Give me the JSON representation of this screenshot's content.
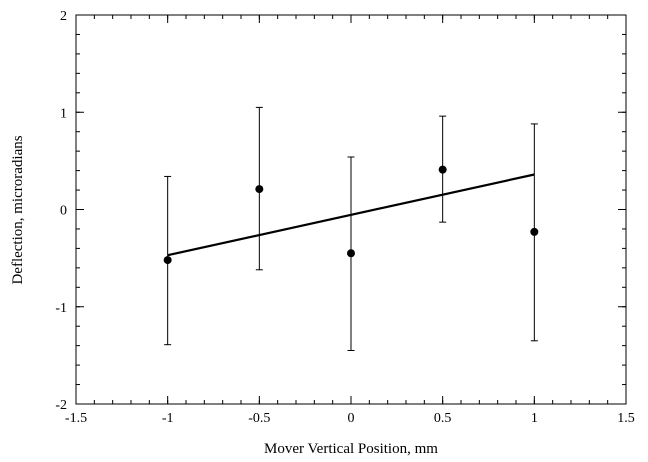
{
  "chart_data": {
    "type": "scatter",
    "xlabel": "Mover Vertical Position, mm",
    "ylabel": "Deflection, microradians",
    "xlim": [
      -1.5,
      1.5
    ],
    "ylim": [
      -2,
      2
    ],
    "x_ticks": [
      -1.5,
      -1,
      -0.5,
      0,
      0.5,
      1,
      1.5
    ],
    "x_tick_labels": [
      "-1.5",
      "-1",
      "-0.5",
      "0",
      "0.5",
      "1",
      "1.5"
    ],
    "y_ticks": [
      -2,
      -1,
      0,
      1,
      2
    ],
    "y_tick_labels": [
      "-2",
      "-1",
      "0",
      "1",
      "2"
    ],
    "x_minor_step": 0.1,
    "y_minor_step": 0.2,
    "grid": false,
    "series": [
      {
        "points": [
          {
            "x": -1.0,
            "y": -0.52,
            "err_low": -1.39,
            "err_high": 0.34
          },
          {
            "x": -0.5,
            "y": 0.21,
            "err_low": -0.62,
            "err_high": 1.05
          },
          {
            "x": 0.0,
            "y": -0.45,
            "err_low": -1.45,
            "err_high": 0.54
          },
          {
            "x": 0.5,
            "y": 0.41,
            "err_low": -0.13,
            "err_high": 0.96
          },
          {
            "x": 1.0,
            "y": -0.23,
            "err_low": -1.35,
            "err_high": 0.88
          }
        ]
      }
    ],
    "fit_line": {
      "x": [
        -1.0,
        1.0
      ],
      "y": [
        -0.47,
        0.36
      ]
    }
  }
}
